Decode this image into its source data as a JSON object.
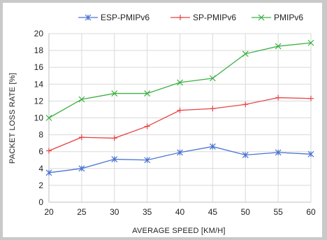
{
  "chart_data": {
    "type": "line",
    "xlabel": "AVERAGE SPEED [KM/H]",
    "ylabel": "PACKET LOSS RATE [%]",
    "x": [
      20,
      25,
      30,
      35,
      40,
      45,
      50,
      55,
      60
    ],
    "xlim": [
      20,
      60
    ],
    "ylim": [
      0,
      20
    ],
    "yticks": [
      0,
      2,
      4,
      6,
      8,
      10,
      12,
      14,
      16,
      18,
      20
    ],
    "grid": true,
    "legend_position": "top",
    "series": [
      {
        "name": "ESP-PMIPv6",
        "marker": "x-star",
        "color": "#4a73d1",
        "values": [
          3.5,
          4.0,
          5.1,
          5.0,
          5.9,
          6.6,
          5.6,
          5.9,
          5.7
        ]
      },
      {
        "name": "SP-PMIPv6",
        "marker": "plus",
        "color": "#e64545",
        "values": [
          6.1,
          7.7,
          7.6,
          9.0,
          10.9,
          11.1,
          11.6,
          12.4,
          12.3
        ]
      },
      {
        "name": "PMIPv6",
        "marker": "x",
        "color": "#3cb043",
        "values": [
          10.0,
          12.2,
          12.9,
          12.9,
          14.2,
          14.7,
          17.6,
          18.5,
          18.9
        ]
      }
    ]
  }
}
